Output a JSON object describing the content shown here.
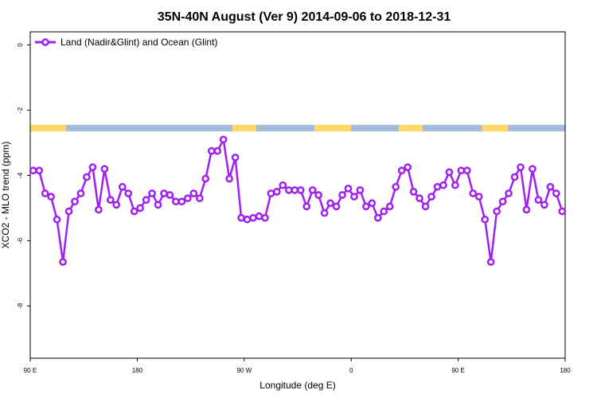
{
  "chart_data": {
    "type": "line",
    "title": "35N-40N August (Ver 9)   2014-09-06 to 2018-12-31",
    "xlabel": "Longitude (deg E)",
    "ylabel": "XCO2 - MLO trend (ppm)",
    "x_ticks": [
      {
        "value": 90,
        "label": "90 E"
      },
      {
        "value": 180,
        "label": "180"
      },
      {
        "value": 270,
        "label": "90 W"
      },
      {
        "value": 360,
        "label": "0"
      },
      {
        "value": 450,
        "label": "90 E"
      },
      {
        "value": 540,
        "label": "180"
      }
    ],
    "y_ticks": [
      {
        "value": 0,
        "label": "0"
      },
      {
        "value": -2,
        "label": "-2"
      },
      {
        "value": -4,
        "label": "-4"
      },
      {
        "value": -6,
        "label": "-6"
      },
      {
        "value": -8,
        "label": "-8"
      }
    ],
    "xlim": [
      90,
      540
    ],
    "ylim": [
      -9.6,
      0.4
    ],
    "legend": {
      "position": "top-left"
    },
    "colors": {
      "series": "#a020f0",
      "land": "#ffd966",
      "ocean": "#a4bcdc"
    },
    "land_ocean_strip": {
      "y_range": [
        -2.45,
        -2.65
      ],
      "land_spans": [
        [
          90,
          120
        ],
        [
          260,
          280
        ],
        [
          329,
          360
        ],
        [
          400,
          420
        ],
        [
          470,
          492
        ]
      ]
    },
    "series": [
      {
        "name": "Land (Nadir&Glint) and Ocean (Glint)",
        "x": [
          92.5,
          97.5,
          102.5,
          107.5,
          112.5,
          117.5,
          122.5,
          127.5,
          132.5,
          137.5,
          142.5,
          147.5,
          152.5,
          157.5,
          162.5,
          167.5,
          172.5,
          177.5,
          182.5,
          187.5,
          192.5,
          197.5,
          202.5,
          207.5,
          212.5,
          217.5,
          222.5,
          227.5,
          232.5,
          237.5,
          242.5,
          247.5,
          252.5,
          257.5,
          262.5,
          267.5,
          272.5,
          277.5,
          282.5,
          287.5,
          292.5,
          297.5,
          302.5,
          307.5,
          312.5,
          317.5,
          322.5,
          327.5,
          332.5,
          337.5,
          342.5,
          347.5,
          352.5,
          357.5,
          362.5,
          367.5,
          372.5,
          377.5,
          382.5,
          387.5,
          392.5,
          397.5,
          402.5,
          407.5,
          412.5,
          417.5,
          422.5,
          427.5,
          432.5,
          437.5,
          442.5,
          447.5,
          452.5,
          457.5,
          462.5,
          467.5,
          472.5,
          477.5,
          482.5,
          487.5,
          492.5,
          497.5,
          502.5,
          507.5,
          512.5,
          517.5,
          522.5,
          527.5,
          532.5,
          537.5
        ],
        "y": [
          -3.85,
          -3.85,
          -4.55,
          -4.65,
          -5.35,
          -6.65,
          -5.1,
          -4.8,
          -4.55,
          -4.05,
          -3.75,
          -5.05,
          -3.8,
          -4.75,
          -4.9,
          -4.35,
          -4.55,
          -5.1,
          -5.0,
          -4.75,
          -4.55,
          -4.9,
          -4.55,
          -4.6,
          -4.8,
          -4.8,
          -4.7,
          -4.55,
          -4.7,
          -4.1,
          -3.25,
          -3.25,
          -2.9,
          -4.1,
          -3.45,
          -5.3,
          -5.35,
          -5.3,
          -5.25,
          -5.3,
          -4.55,
          -4.5,
          -4.3,
          -4.45,
          -4.45,
          -4.45,
          -4.95,
          -4.45,
          -4.6,
          -5.15,
          -4.85,
          -4.95,
          -4.6,
          -4.4,
          -4.65,
          -4.45,
          -4.95,
          -4.85,
          -5.3,
          -5.1,
          -4.95,
          -4.35,
          -3.85,
          -3.75,
          -4.5,
          -4.7,
          -4.95,
          -4.65,
          -4.35,
          -4.3,
          -3.9,
          -4.3,
          -3.85,
          -3.85,
          -4.55,
          -4.65,
          -5.35,
          -6.65,
          -5.1,
          -4.8,
          -4.55,
          -4.05,
          -3.75,
          -5.05,
          -3.8,
          -4.75,
          -4.9,
          -4.35,
          -4.55,
          -5.1
        ]
      }
    ]
  }
}
